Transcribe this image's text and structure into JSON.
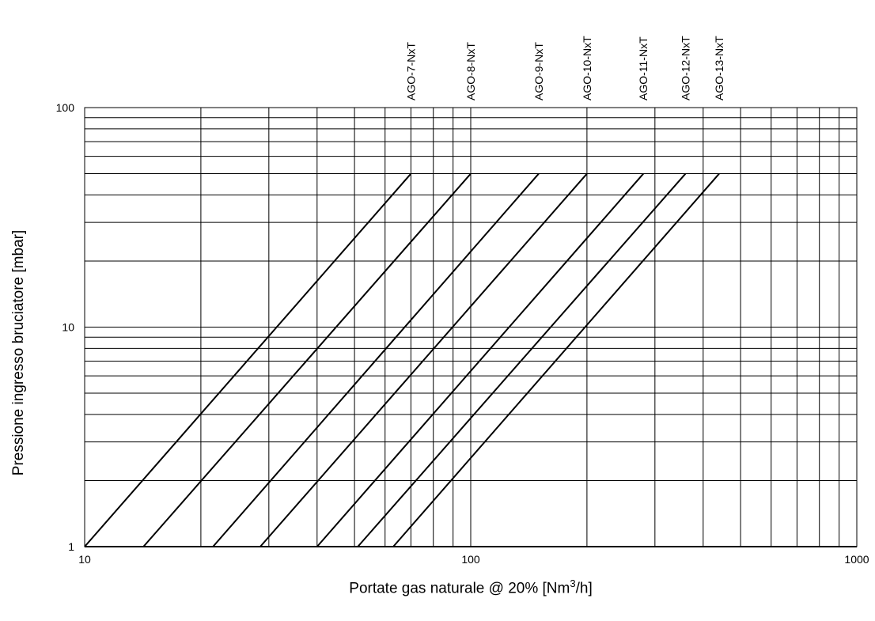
{
  "chart_data": {
    "type": "line",
    "xscale": "log",
    "yscale": "log",
    "xlim": [
      10,
      1000
    ],
    "ylim": [
      1,
      100
    ],
    "xlabel_main": "Portate gas naturale @ 20% [Nm",
    "xlabel_sup": "3",
    "xlabel_end": "/h]",
    "ylabel": "Pressione ingresso bruciatore [mbar]",
    "x_ticks": [
      {
        "value": 10,
        "label": "10"
      },
      {
        "value": 100,
        "label": "100"
      },
      {
        "value": 1000,
        "label": "1000"
      }
    ],
    "y_ticks": [
      {
        "value": 1,
        "label": "1"
      },
      {
        "value": 10,
        "label": "10"
      },
      {
        "value": 100,
        "label": "100"
      }
    ],
    "grid": true,
    "color": "#000000",
    "series": [
      {
        "name": "AGO-7-NxT",
        "x": [
          10,
          70
        ],
        "y": [
          1,
          50
        ]
      },
      {
        "name": "AGO-8-NxT",
        "x": [
          14.2,
          100
        ],
        "y": [
          1,
          50
        ]
      },
      {
        "name": "AGO-9-NxT",
        "x": [
          21.5,
          150
        ],
        "y": [
          1,
          50
        ]
      },
      {
        "name": "AGO-10-NxT",
        "x": [
          28.5,
          200
        ],
        "y": [
          1,
          50
        ]
      },
      {
        "name": "AGO-11-NxT",
        "x": [
          40,
          280
        ],
        "y": [
          1,
          50
        ]
      },
      {
        "name": "AGO-12-NxT",
        "x": [
          51,
          360
        ],
        "y": [
          1,
          50
        ]
      },
      {
        "name": "AGO-13-NxT",
        "x": [
          63,
          440
        ],
        "y": [
          1,
          50
        ]
      }
    ]
  }
}
